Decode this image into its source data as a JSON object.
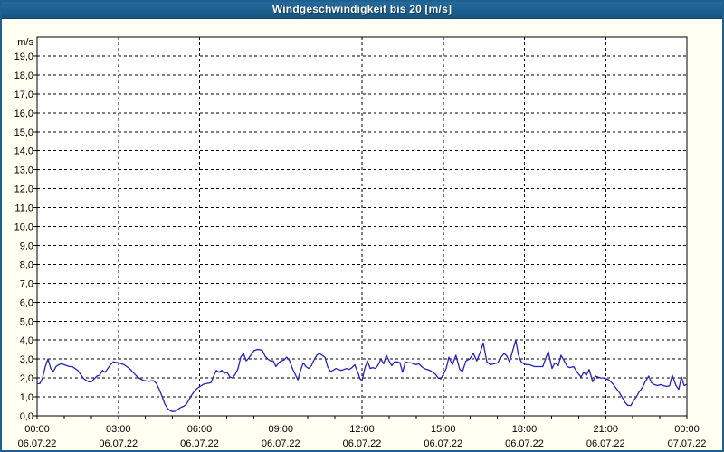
{
  "window": {
    "title": "Windgeschwindigkeit bis 20 [m/s]"
  },
  "colors": {
    "titlebar_bg": "#1d6191",
    "titlebar_text": "#ffffff",
    "frame_border": "#1d6191",
    "content_bg": "#fffff2",
    "plot_bg": "#ffffff",
    "axis": "#000000",
    "grid": "#000000",
    "label_text": "#000000",
    "line": "#2323be"
  },
  "chart_data": {
    "type": "line",
    "title": "Windgeschwindigkeit bis 20 [m/s]",
    "ylabel": "m/s",
    "xlabel": "",
    "ylim": [
      0,
      20
    ],
    "xlim_hours": [
      0,
      24
    ],
    "grid": "dashed",
    "legend_position": "none",
    "minor_x_tick_every_hours": 1,
    "y_ticks": [
      {
        "value": 19,
        "label": "19,0"
      },
      {
        "value": 18,
        "label": "18,0"
      },
      {
        "value": 17,
        "label": "17,0"
      },
      {
        "value": 16,
        "label": "16,0"
      },
      {
        "value": 15,
        "label": "15,0"
      },
      {
        "value": 14,
        "label": "14,0"
      },
      {
        "value": 13,
        "label": "13,0"
      },
      {
        "value": 12,
        "label": "12,0"
      },
      {
        "value": 11,
        "label": "11,0"
      },
      {
        "value": 10,
        "label": "10,0"
      },
      {
        "value": 9,
        "label": "9,0"
      },
      {
        "value": 8,
        "label": "8,0"
      },
      {
        "value": 7,
        "label": "7,0"
      },
      {
        "value": 6,
        "label": "6,0"
      },
      {
        "value": 5,
        "label": "5,0"
      },
      {
        "value": 4,
        "label": "4,0"
      },
      {
        "value": 3,
        "label": "3,0"
      },
      {
        "value": 2,
        "label": "2,0"
      },
      {
        "value": 1,
        "label": "1,0"
      },
      {
        "value": 0,
        "label": "0,0"
      }
    ],
    "x_ticks": [
      {
        "hour": 0,
        "time": "00:00",
        "date": "06.07.22"
      },
      {
        "hour": 3,
        "time": "03:00",
        "date": "06.07.22"
      },
      {
        "hour": 6,
        "time": "06:00",
        "date": "06.07.22"
      },
      {
        "hour": 9,
        "time": "09:00",
        "date": "06.07.22"
      },
      {
        "hour": 12,
        "time": "12:00",
        "date": "06.07.22"
      },
      {
        "hour": 15,
        "time": "15:00",
        "date": "06.07.22"
      },
      {
        "hour": 18,
        "time": "18:00",
        "date": "06.07.22"
      },
      {
        "hour": 21,
        "time": "21:00",
        "date": "06.07.22"
      },
      {
        "hour": 24,
        "time": "00:00",
        "date": "07.07.22"
      }
    ],
    "series": [
      {
        "name": "Windgeschwindigkeit",
        "unit": "m/s",
        "color": "#2323be",
        "points": [
          [
            0.0,
            1.7
          ],
          [
            0.1,
            1.7
          ],
          [
            0.2,
            2.0
          ],
          [
            0.3,
            2.6
          ],
          [
            0.4,
            3.0
          ],
          [
            0.5,
            2.5
          ],
          [
            0.6,
            2.35
          ],
          [
            0.7,
            2.6
          ],
          [
            0.8,
            2.7
          ],
          [
            0.9,
            2.75
          ],
          [
            1.0,
            2.7
          ],
          [
            1.1,
            2.65
          ],
          [
            1.2,
            2.6
          ],
          [
            1.3,
            2.6
          ],
          [
            1.4,
            2.5
          ],
          [
            1.5,
            2.4
          ],
          [
            1.6,
            2.2
          ],
          [
            1.7,
            2.0
          ],
          [
            1.8,
            1.88
          ],
          [
            1.9,
            1.8
          ],
          [
            2.01,
            1.8
          ],
          [
            2.11,
            1.95
          ],
          [
            2.21,
            2.1
          ],
          [
            2.31,
            2.15
          ],
          [
            2.41,
            2.4
          ],
          [
            2.51,
            2.3
          ],
          [
            2.61,
            2.5
          ],
          [
            2.71,
            2.7
          ],
          [
            2.81,
            2.85
          ],
          [
            2.91,
            2.82
          ],
          [
            3.01,
            2.8
          ],
          [
            3.11,
            2.75
          ],
          [
            3.21,
            2.7
          ],
          [
            3.31,
            2.6
          ],
          [
            3.41,
            2.5
          ],
          [
            3.51,
            2.35
          ],
          [
            3.61,
            2.2
          ],
          [
            3.71,
            2.05
          ],
          [
            3.81,
            1.95
          ],
          [
            3.91,
            1.88
          ],
          [
            4.01,
            1.85
          ],
          [
            4.11,
            1.82
          ],
          [
            4.21,
            1.85
          ],
          [
            4.31,
            1.85
          ],
          [
            4.41,
            1.7
          ],
          [
            4.51,
            1.4
          ],
          [
            4.61,
            1.05
          ],
          [
            4.71,
            0.65
          ],
          [
            4.81,
            0.4
          ],
          [
            4.91,
            0.28
          ],
          [
            5.01,
            0.22
          ],
          [
            5.11,
            0.25
          ],
          [
            5.21,
            0.35
          ],
          [
            5.31,
            0.45
          ],
          [
            5.41,
            0.5
          ],
          [
            5.51,
            0.6
          ],
          [
            5.61,
            0.85
          ],
          [
            5.71,
            1.1
          ],
          [
            5.81,
            1.3
          ],
          [
            5.91,
            1.45
          ],
          [
            6.02,
            1.55
          ],
          [
            6.12,
            1.65
          ],
          [
            6.22,
            1.7
          ],
          [
            6.32,
            1.72
          ],
          [
            6.42,
            1.75
          ],
          [
            6.52,
            2.1
          ],
          [
            6.62,
            2.4
          ],
          [
            6.72,
            2.3
          ],
          [
            6.82,
            2.4
          ],
          [
            6.92,
            2.25
          ],
          [
            7.02,
            2.3
          ],
          [
            7.12,
            2.05
          ],
          [
            7.22,
            2.0
          ],
          [
            7.32,
            2.2
          ],
          [
            7.42,
            2.5
          ],
          [
            7.52,
            3.1
          ],
          [
            7.62,
            3.3
          ],
          [
            7.72,
            2.9
          ],
          [
            7.82,
            3.05
          ],
          [
            7.92,
            3.25
          ],
          [
            8.02,
            3.45
          ],
          [
            8.12,
            3.5
          ],
          [
            8.22,
            3.5
          ],
          [
            8.32,
            3.45
          ],
          [
            8.42,
            3.15
          ],
          [
            8.52,
            3.0
          ],
          [
            8.62,
            2.9
          ],
          [
            8.72,
            2.9
          ],
          [
            8.82,
            2.6
          ],
          [
            8.92,
            2.8
          ],
          [
            9.02,
            2.9
          ],
          [
            9.12,
            2.95
          ],
          [
            9.22,
            3.1
          ],
          [
            9.33,
            2.9
          ],
          [
            9.43,
            2.5
          ],
          [
            9.53,
            2.2
          ],
          [
            9.63,
            1.9
          ],
          [
            9.73,
            2.4
          ],
          [
            9.83,
            2.8
          ],
          [
            9.93,
            2.6
          ],
          [
            10.03,
            2.5
          ],
          [
            10.13,
            2.65
          ],
          [
            10.23,
            2.95
          ],
          [
            10.33,
            3.2
          ],
          [
            10.43,
            3.3
          ],
          [
            10.53,
            3.2
          ],
          [
            10.63,
            3.1
          ],
          [
            10.73,
            2.6
          ],
          [
            10.83,
            2.35
          ],
          [
            10.93,
            2.4
          ],
          [
            11.03,
            2.5
          ],
          [
            11.13,
            2.45
          ],
          [
            11.23,
            2.4
          ],
          [
            11.33,
            2.45
          ],
          [
            11.43,
            2.5
          ],
          [
            11.53,
            2.45
          ],
          [
            11.63,
            2.55
          ],
          [
            11.73,
            2.7
          ],
          [
            11.83,
            2.35
          ],
          [
            11.93,
            1.95
          ],
          [
            12.0,
            1.85
          ],
          [
            12.1,
            2.5
          ],
          [
            12.2,
            2.9
          ],
          [
            12.3,
            2.5
          ],
          [
            12.4,
            2.55
          ],
          [
            12.5,
            2.5
          ],
          [
            12.6,
            2.7
          ],
          [
            12.7,
            3.0
          ],
          [
            12.8,
            2.75
          ],
          [
            12.9,
            3.2
          ],
          [
            13.0,
            2.9
          ],
          [
            13.1,
            2.65
          ],
          [
            13.2,
            2.85
          ],
          [
            13.3,
            2.85
          ],
          [
            13.4,
            2.8
          ],
          [
            13.5,
            2.3
          ],
          [
            13.6,
            2.85
          ],
          [
            13.7,
            2.8
          ],
          [
            13.8,
            2.8
          ],
          [
            13.9,
            2.75
          ],
          [
            14.0,
            2.7
          ],
          [
            14.1,
            2.75
          ],
          [
            14.2,
            2.6
          ],
          [
            14.3,
            2.5
          ],
          [
            14.41,
            2.45
          ],
          [
            14.51,
            2.4
          ],
          [
            14.61,
            2.3
          ],
          [
            14.71,
            2.2
          ],
          [
            14.81,
            2.0
          ],
          [
            14.91,
            1.95
          ],
          [
            15.01,
            2.2
          ],
          [
            15.11,
            2.5
          ],
          [
            15.21,
            3.1
          ],
          [
            15.34,
            2.7
          ],
          [
            15.47,
            3.2
          ],
          [
            15.61,
            2.45
          ],
          [
            15.71,
            2.35
          ],
          [
            15.84,
            2.9
          ],
          [
            15.98,
            3.0
          ],
          [
            16.11,
            3.3
          ],
          [
            16.24,
            2.9
          ],
          [
            16.38,
            3.4
          ],
          [
            16.48,
            3.85
          ],
          [
            16.61,
            2.85
          ],
          [
            16.74,
            2.7
          ],
          [
            16.88,
            2.75
          ],
          [
            17.01,
            2.8
          ],
          [
            17.11,
            3.05
          ],
          [
            17.25,
            3.3
          ],
          [
            17.35,
            3.15
          ],
          [
            17.45,
            2.85
          ],
          [
            17.58,
            3.5
          ],
          [
            17.68,
            4.0
          ],
          [
            17.78,
            3.2
          ],
          [
            17.88,
            2.85
          ],
          [
            17.98,
            2.75
          ],
          [
            18.08,
            2.7
          ],
          [
            18.18,
            2.7
          ],
          [
            18.28,
            2.65
          ],
          [
            18.38,
            2.6
          ],
          [
            18.48,
            2.6
          ],
          [
            18.58,
            2.6
          ],
          [
            18.68,
            2.6
          ],
          [
            18.78,
            3.0
          ],
          [
            18.88,
            3.4
          ],
          [
            19.02,
            2.5
          ],
          [
            19.12,
            2.8
          ],
          [
            19.25,
            2.65
          ],
          [
            19.35,
            3.2
          ],
          [
            19.45,
            2.95
          ],
          [
            19.58,
            2.6
          ],
          [
            19.68,
            2.55
          ],
          [
            19.82,
            2.6
          ],
          [
            19.95,
            2.3
          ],
          [
            20.09,
            2.05
          ],
          [
            20.19,
            2.3
          ],
          [
            20.29,
            2.15
          ],
          [
            20.39,
            2.45
          ],
          [
            20.52,
            1.8
          ],
          [
            20.62,
            2.1
          ],
          [
            20.72,
            2.05
          ],
          [
            20.82,
            2.0
          ],
          [
            20.92,
            2.0
          ],
          [
            21.02,
            1.95
          ],
          [
            21.12,
            1.9
          ],
          [
            21.26,
            1.7
          ],
          [
            21.39,
            1.45
          ],
          [
            21.52,
            1.2
          ],
          [
            21.62,
            0.95
          ],
          [
            21.72,
            0.7
          ],
          [
            21.82,
            0.55
          ],
          [
            21.93,
            0.55
          ],
          [
            22.03,
            0.8
          ],
          [
            22.13,
            1.0
          ],
          [
            22.23,
            1.25
          ],
          [
            22.36,
            1.5
          ],
          [
            22.46,
            1.8
          ],
          [
            22.59,
            2.1
          ],
          [
            22.69,
            1.75
          ],
          [
            22.79,
            1.65
          ],
          [
            22.93,
            1.6
          ],
          [
            23.03,
            1.65
          ],
          [
            23.13,
            1.6
          ],
          [
            23.26,
            1.55
          ],
          [
            23.36,
            1.6
          ],
          [
            23.46,
            2.15
          ],
          [
            23.6,
            1.6
          ],
          [
            23.7,
            1.4
          ],
          [
            23.8,
            2.05
          ],
          [
            23.9,
            1.6
          ],
          [
            23.97,
            1.65
          ]
        ]
      }
    ]
  }
}
